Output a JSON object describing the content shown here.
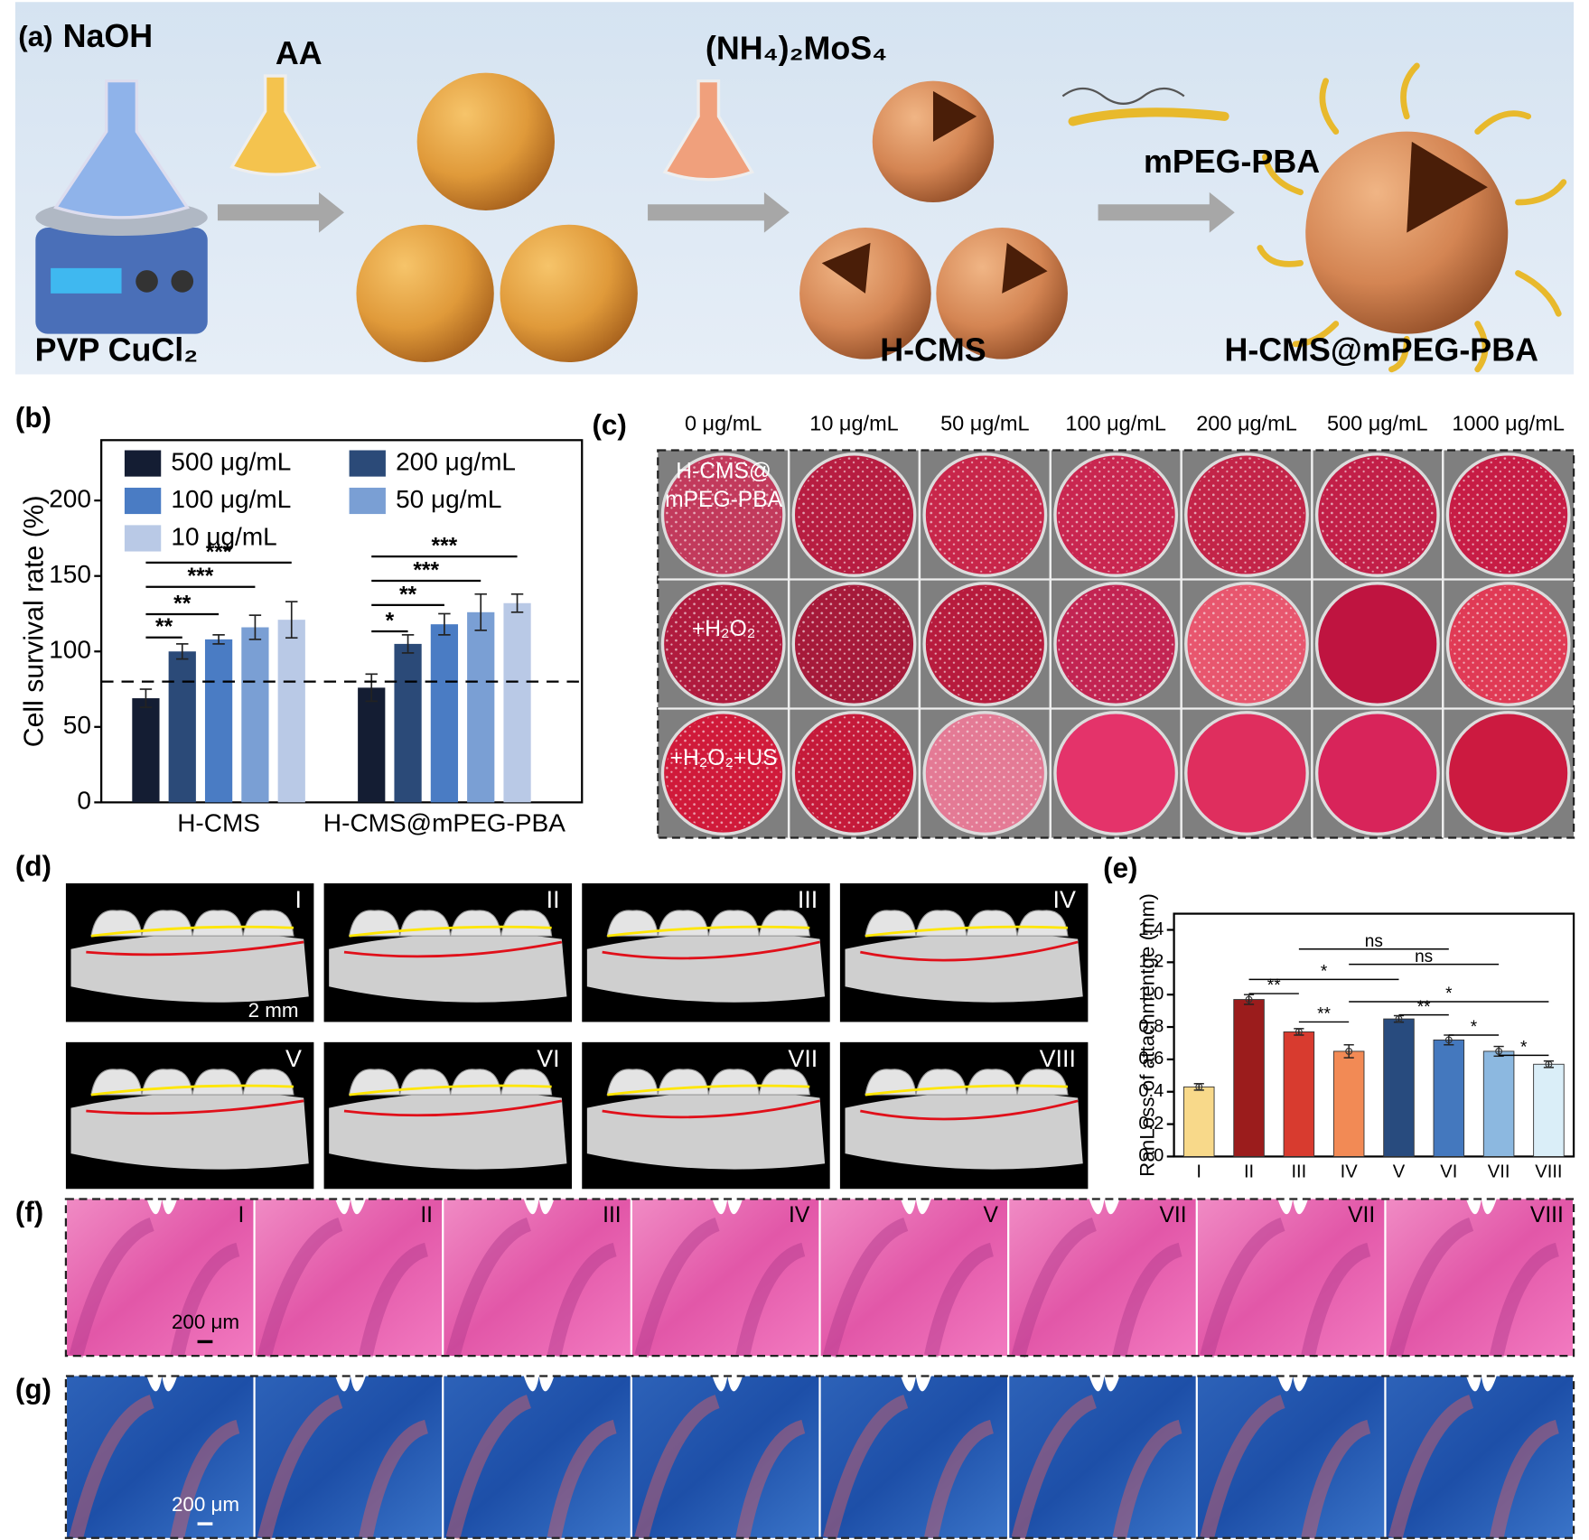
{
  "panel_a": {
    "label": "(a)",
    "reagents": [
      "NaOH",
      "AA",
      "(NH₄)₂MoS₄"
    ],
    "linker": "mPEG-PBA",
    "names": [
      "PVP CuCl₂",
      "H-CMS",
      "H-CMS@mPEG-PBA"
    ]
  },
  "chart_data": [
    {
      "type": "bar",
      "panel_label": "(b)",
      "y_label": "Cell survival rate (%)",
      "categories": [
        "H-CMS",
        "H-CMS@mPEG-PBA"
      ],
      "series": [
        {
          "name": "500 μg/mL",
          "color": "#141d33",
          "values": [
            69,
            76
          ],
          "errors": [
            6,
            9
          ]
        },
        {
          "name": "200 μg/mL",
          "color": "#2b4a78",
          "values": [
            100,
            105
          ],
          "errors": [
            5,
            6
          ]
        },
        {
          "name": "100 μg/mL",
          "color": "#4a7cc4",
          "values": [
            108,
            118
          ],
          "errors": [
            3,
            7
          ]
        },
        {
          "name": "50 μg/mL",
          "color": "#7a9fd4",
          "values": [
            116,
            126
          ],
          "errors": [
            8,
            12
          ]
        },
        {
          "name": "10 μg/mL",
          "color": "#b9c9e6",
          "values": [
            121,
            132
          ],
          "errors": [
            12,
            6
          ]
        }
      ],
      "ylim": [
        0,
        240
      ],
      "yticks": [
        0,
        50,
        100,
        150,
        200
      ],
      "reference_line": 80,
      "significance": [
        "**",
        "**",
        "***",
        "***",
        "*",
        "**",
        "***",
        "***"
      ]
    },
    {
      "type": "bar",
      "panel_label": "(e)",
      "y_label": "RanLoss of attachmentge (mm)",
      "categories": [
        "I",
        "II",
        "III",
        "IV",
        "V",
        "VI",
        "VII",
        "VIII"
      ],
      "values": [
        0.43,
        0.97,
        0.77,
        0.65,
        0.85,
        0.72,
        0.65,
        0.57
      ],
      "errors": [
        0.02,
        0.03,
        0.02,
        0.04,
        0.02,
        0.03,
        0.03,
        0.02
      ],
      "colors": [
        "#f8d98a",
        "#9b1c1c",
        "#d83b2f",
        "#f28a55",
        "#284b7e",
        "#4478be",
        "#8cb8e0",
        "#daeef8"
      ],
      "ylim": [
        0,
        1.5
      ],
      "yticks": [
        {
          "value": 0,
          "label": "0.0"
        },
        0.2,
        0.4,
        0.6,
        0.8,
        {
          "value": 1,
          "label": "1.0"
        },
        1.2,
        1.4
      ],
      "significance": [
        "ns",
        "ns",
        "*",
        "**",
        "*",
        "**",
        "**",
        "*",
        "*"
      ]
    }
  ],
  "panel_c": {
    "label": "(c)",
    "columns": [
      "0 μg/mL",
      "10 μg/mL",
      "50 μg/mL",
      "100 μg/mL",
      "200 μg/mL",
      "500 μg/mL",
      "1000 μg/mL"
    ],
    "row_labels": [
      [
        "H-CMS@",
        "mPEG-PBA"
      ],
      [
        "+H₂O₂"
      ],
      [
        "+H₂O₂+US"
      ]
    ]
  },
  "panel_d": {
    "label": "(d)",
    "groups": [
      "I",
      "II",
      "III",
      "IV",
      "V",
      "VI",
      "VII",
      "VIII"
    ],
    "scale_bar": "2 mm"
  },
  "panel_f": {
    "label": "(f)",
    "groups": [
      "I",
      "II",
      "III",
      "IV",
      "V",
      "VII",
      "VII",
      "VIII"
    ],
    "scale_bar": "200 μm"
  },
  "panel_g": {
    "label": "(g)",
    "scale_bar": "200 μm"
  }
}
